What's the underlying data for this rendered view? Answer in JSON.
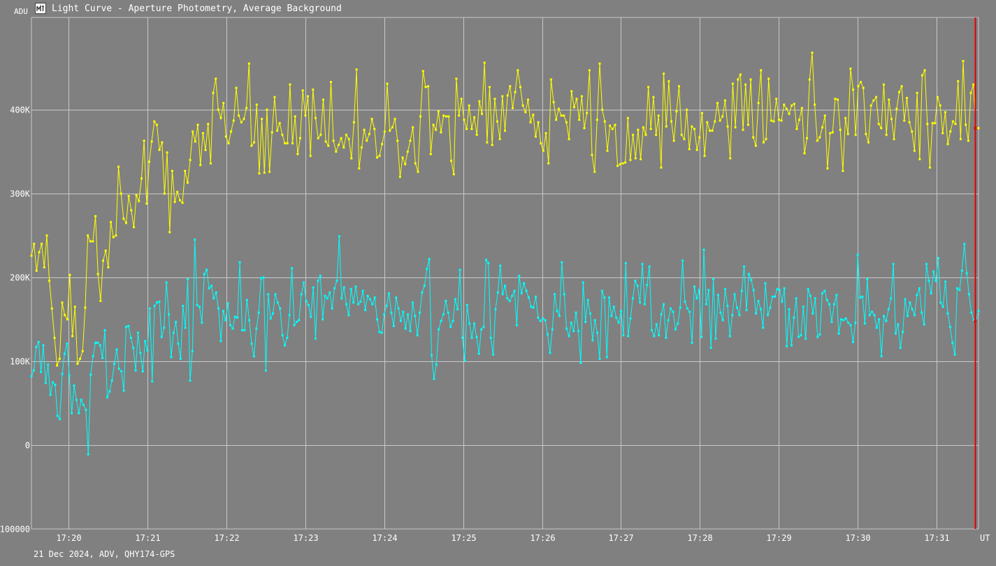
{
  "window": {
    "title": "Light Curve - Aperture Photometry, Average Background",
    "icon": "light-curve-app-icon"
  },
  "footer": {
    "text": "21 Dec 2024, ADV, QHY174-GPS"
  },
  "chart_data": {
    "type": "line",
    "ylabel": "ADU",
    "xlabel": "UT",
    "ylim": [
      -100000,
      510000
    ],
    "y_ticks": [
      "400K",
      "300K",
      "200K",
      "100K",
      "0",
      "-100000"
    ],
    "y_tick_values": [
      400000,
      300000,
      200000,
      100000,
      0,
      -100000
    ],
    "x_ticks": [
      "17:20",
      "17:21",
      "17:22",
      "17:23",
      "17:24",
      "17:25",
      "17:26",
      "17:27",
      "17:28",
      "17:29",
      "17:30",
      "17:31"
    ],
    "x_tick_values": [
      20,
      21,
      22,
      23,
      24,
      25,
      26,
      27,
      28,
      29,
      30,
      31
    ],
    "x_unit": "minutes past 17:00 UT",
    "xlim": [
      19.53,
      31.53
    ],
    "grid": true,
    "cursor_x": 31.49,
    "series": [
      {
        "color": "#ffff00",
        "values": [
          226000,
          240000,
          208000,
          230000,
          240000,
          212000,
          250000,
          196000,
          163000,
          128000,
          95000,
          103000,
          170000,
          155000,
          150000,
          203000,
          130000,
          165000,
          97000,
          103000,
          112000,
          164000,
          250000,
          243000,
          243000,
          273000,
          204000,
          172000,
          220000,
          232000,
          212000,
          266000,
          248000,
          250000,
          332000,
          300000,
          270000,
          265000,
          297000,
          280000,
          260000,
          298000,
          291000,
          318000,
          363000,
          288000,
          338000,
          362000,
          386000,
          382000,
          352000,
          361000,
          300000,
          349000,
          254000,
          327000,
          290000,
          302000,
          292000,
          289000,
          327000,
          313000,
          340000,
          374000,
          362000,
          382000,
          334000,
          372000,
          352000,
          383000,
          336000,
          420000,
          437000,
          400000,
          390000,
          408000,
          368000,
          360000,
          374000,
          387000,
          426000,
          393000,
          385000,
          389000,
          402000,
          455000,
          357000,
          361000,
          406000,
          324000,
          389000,
          325000,
          400000,
          326000,
          373000,
          415000,
          375000,
          384000,
          370000,
          360000,
          360000,
          430000,
          360000,
          392000,
          347000,
          366000,
          423000,
          393000,
          416000,
          345000,
          424000,
          390000,
          366000,
          370000,
          412000,
          362000,
          357000,
          433000,
          363000,
          350000,
          358000,
          366000,
          355000,
          370000,
          365000,
          342000,
          385000,
          448000,
          330000,
          355000,
          376000,
          363000,
          371000,
          389000,
          377000,
          343000,
          345000,
          359000,
          374000,
          431000,
          375000,
          379000,
          389000,
          363000,
          320000,
          343000,
          335000,
          350000,
          363000,
          379000,
          336000,
          326000,
          392000,
          446000,
          427000,
          428000,
          347000,
          382000,
          376000,
          398000,
          373000,
          393000,
          392000,
          392000,
          339000,
          323000,
          437000,
          393000,
          413000,
          388000,
          377000,
          405000,
          377000,
          391000,
          370000,
          410000,
          395000,
          456000,
          361000,
          427000,
          358000,
          413000,
          386000,
          365000,
          416000,
          375000,
          417000,
          428000,
          402000,
          421000,
          447000,
          427000,
          405000,
          397000,
          412000,
          385000,
          394000,
          368000,
          385000,
          360000,
          351000,
          372000,
          336000,
          436000,
          409000,
          388000,
          401000,
          393000,
          393000,
          385000,
          365000,
          422000,
          403000,
          413000,
          388000,
          416000,
          378000,
          396000,
          447000,
          346000,
          326000,
          388000,
          455000,
          400000,
          386000,
          351000,
          381000,
          377000,
          382000,
          333000,
          335000,
          336000,
          337000,
          390000,
          340000,
          370000,
          342000,
          376000,
          341000,
          379000,
          370000,
          427000,
          377000,
          415000,
          370000,
          393000,
          331000,
          443000,
          380000,
          434000,
          386000,
          363000,
          398000,
          428000,
          370000,
          365000,
          400000,
          353000,
          380000,
          377000,
          352000,
          367000,
          396000,
          345000,
          385000,
          375000,
          375000,
          386000,
          408000,
          387000,
          392000,
          411000,
          380000,
          342000,
          431000,
          379000,
          436000,
          442000,
          376000,
          430000,
          382000,
          436000,
          367000,
          357000,
          408000,
          447000,
          361000,
          365000,
          437000,
          387000,
          386000,
          413000,
          388000,
          387000,
          406000,
          401000,
          395000,
          405000,
          407000,
          377000,
          388000,
          402000,
          348000,
          366000,
          436000,
          468000,
          406000,
          363000,
          367000,
          379000,
          393000,
          330000,
          372000,
          373000,
          413000,
          412000,
          376000,
          327000,
          390000,
          371000,
          449000,
          424000,
          370000,
          428000,
          433000,
          426000,
          371000,
          361000,
          405000,
          411000,
          415000,
          383000,
          378000,
          430000,
          370000,
          412000,
          389000,
          365000,
          401000,
          421000,
          428000,
          387000,
          414000,
          385000,
          374000,
          351000,
          420000,
          341000,
          441000,
          447000,
          383000,
          331000,
          384000,
          384000,
          415000,
          405000,
          372000,
          397000,
          359000,
          374000,
          386000,
          383000,
          434000,
          365000,
          458000,
          382000,
          363000,
          420000,
          430000,
          378000,
          378000
        ]
      },
      {
        "color": "#00ffff",
        "values": [
          82000,
          89000,
          117000,
          123000,
          87000,
          119000,
          74000,
          96000,
          60000,
          75000,
          72000,
          35000,
          31000,
          85000,
          109000,
          121000,
          83000,
          38000,
          71000,
          54000,
          38000,
          54000,
          48000,
          42000,
          -11000,
          84000,
          106000,
          122000,
          122000,
          119000,
          104000,
          137000,
          57000,
          64000,
          77000,
          97000,
          114000,
          91000,
          88000,
          65000,
          141000,
          142000,
          128000,
          116000,
          89000,
          134000,
          110000,
          88000,
          124000,
          113000,
          163000,
          76000,
          166000,
          170000,
          171000,
          129000,
          140000,
          194000,
          156000,
          105000,
          134000,
          147000,
          121000,
          103000,
          166000,
          140000,
          198000,
          77000,
          112000,
          245000,
          167000,
          165000,
          146000,
          204000,
          209000,
          187000,
          190000,
          175000,
          182000,
          163000,
          124000,
          160000,
          149000,
          169000,
          143000,
          139000,
          153000,
          152000,
          218000,
          137000,
          137000,
          173000,
          149000,
          121000,
          106000,
          139000,
          158000,
          199000,
          200000,
          89000,
          180000,
          151000,
          157000,
          180000,
          170000,
          163000,
          131000,
          119000,
          128000,
          155000,
          211000,
          143000,
          147000,
          149000,
          180000,
          194000,
          172000,
          167000,
          153000,
          188000,
          127000,
          196000,
          202000,
          150000,
          178000,
          175000,
          182000,
          163000,
          187000,
          196000,
          249000,
          175000,
          188000,
          168000,
          155000,
          186000,
          170000,
          189000,
          168000,
          171000,
          184000,
          161000,
          178000,
          174000,
          168000,
          176000,
          150000,
          135000,
          134000,
          156000,
          166000,
          181000,
          158000,
          142000,
          176000,
          163000,
          148000,
          159000,
          139000,
          156000,
          136000,
          170000,
          154000,
          131000,
          158000,
          182000,
          190000,
          210000,
          222000,
          107000,
          79000,
          96000,
          138000,
          148000,
          156000,
          172000,
          158000,
          141000,
          148000,
          174000,
          162000,
          209000,
          128000,
          101000,
          167000,
          145000,
          128000,
          145000,
          129000,
          109000,
          138000,
          141000,
          221000,
          217000,
          128000,
          108000,
          162000,
          182000,
          214000,
          180000,
          190000,
          175000,
          172000,
          178000,
          184000,
          143000,
          202000,
          181000,
          193000,
          184000,
          176000,
          165000,
          164000,
          177000,
          152000,
          148000,
          151000,
          149000,
          132000,
          110000,
          138000,
          180000,
          160000,
          154000,
          218000,
          180000,
          139000,
          130000,
          146000,
          136000,
          158000,
          136000,
          98000,
          194000,
          147000,
          173000,
          157000,
          125000,
          149000,
          134000,
          103000,
          184000,
          176000,
          105000,
          176000,
          154000,
          165000,
          152000,
          146000,
          160000,
          131000,
          217000,
          130000,
          151000,
          175000,
          196000,
          190000,
          170000,
          216000,
          168000,
          191000,
          213000,
          137000,
          130000,
          144000,
          131000,
          156000,
          168000,
          128000,
          149000,
          163000,
          159000,
          138000,
          145000,
          164000,
          220000,
          171000,
          163000,
          159000,
          122000,
          189000,
          175000,
          185000,
          129000,
          233000,
          168000,
          185000,
          116000,
          198000,
          127000,
          179000,
          158000,
          149000,
          186000,
          166000,
          130000,
          155000,
          180000,
          164000,
          155000,
          184000,
          213000,
          161000,
          204000,
          197000,
          185000,
          157000,
          172000,
          162000,
          140000,
          193000,
          155000,
          164000,
          177000,
          177000,
          186000,
          185000,
          171000,
          187000,
          118000,
          162000,
          119000,
          152000,
          175000,
          129000,
          131000,
          165000,
          127000,
          186000,
          178000,
          157000,
          175000,
          129000,
          132000,
          181000,
          184000,
          173000,
          168000,
          147000,
          168000,
          179000,
          133000,
          150000,
          149000,
          151000,
          146000,
          143000,
          123000,
          146000,
          227000,
          176000,
          177000,
          145000,
          198000,
          155000,
          159000,
          155000,
          140000,
          150000,
          106000,
          154000,
          148000,
          162000,
          175000,
          216000,
          133000,
          144000,
          116000,
          135000,
          174000,
          154000,
          170000,
          162000,
          155000,
          179000,
          187000,
          158000,
          144000,
          216000,
          196000,
          181000,
          207000,
          196000,
          223000,
          170000,
          165000,
          195000,
          157000,
          141000,
          122000,
          108000,
          187000,
          185000,
          208000,
          240000,
          205000,
          180000,
          158000,
          149000,
          148000,
          160000
        ]
      }
    ]
  }
}
